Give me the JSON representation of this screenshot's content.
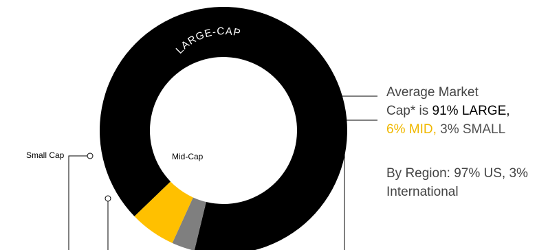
{
  "chart_data": {
    "type": "pie",
    "slices": [
      {
        "label": "LARGE-CAP",
        "value": 91,
        "color": "#000000"
      },
      {
        "label": "Mid-Cap",
        "value": 6,
        "color": "#ffc000"
      },
      {
        "label": "Small Cap",
        "value": 3,
        "color": "#7f7f7f"
      }
    ],
    "donut": true
  },
  "summary": {
    "line1": "Average Market",
    "prefix": "Cap* is ",
    "large": "91% LARGE,",
    "mid": "6% MID,",
    "small": "3% SMALL"
  },
  "region": {
    "text": "By Region: 97% US, 3% International"
  },
  "colors": {
    "leader_line": "#000000",
    "text": "#444444"
  }
}
